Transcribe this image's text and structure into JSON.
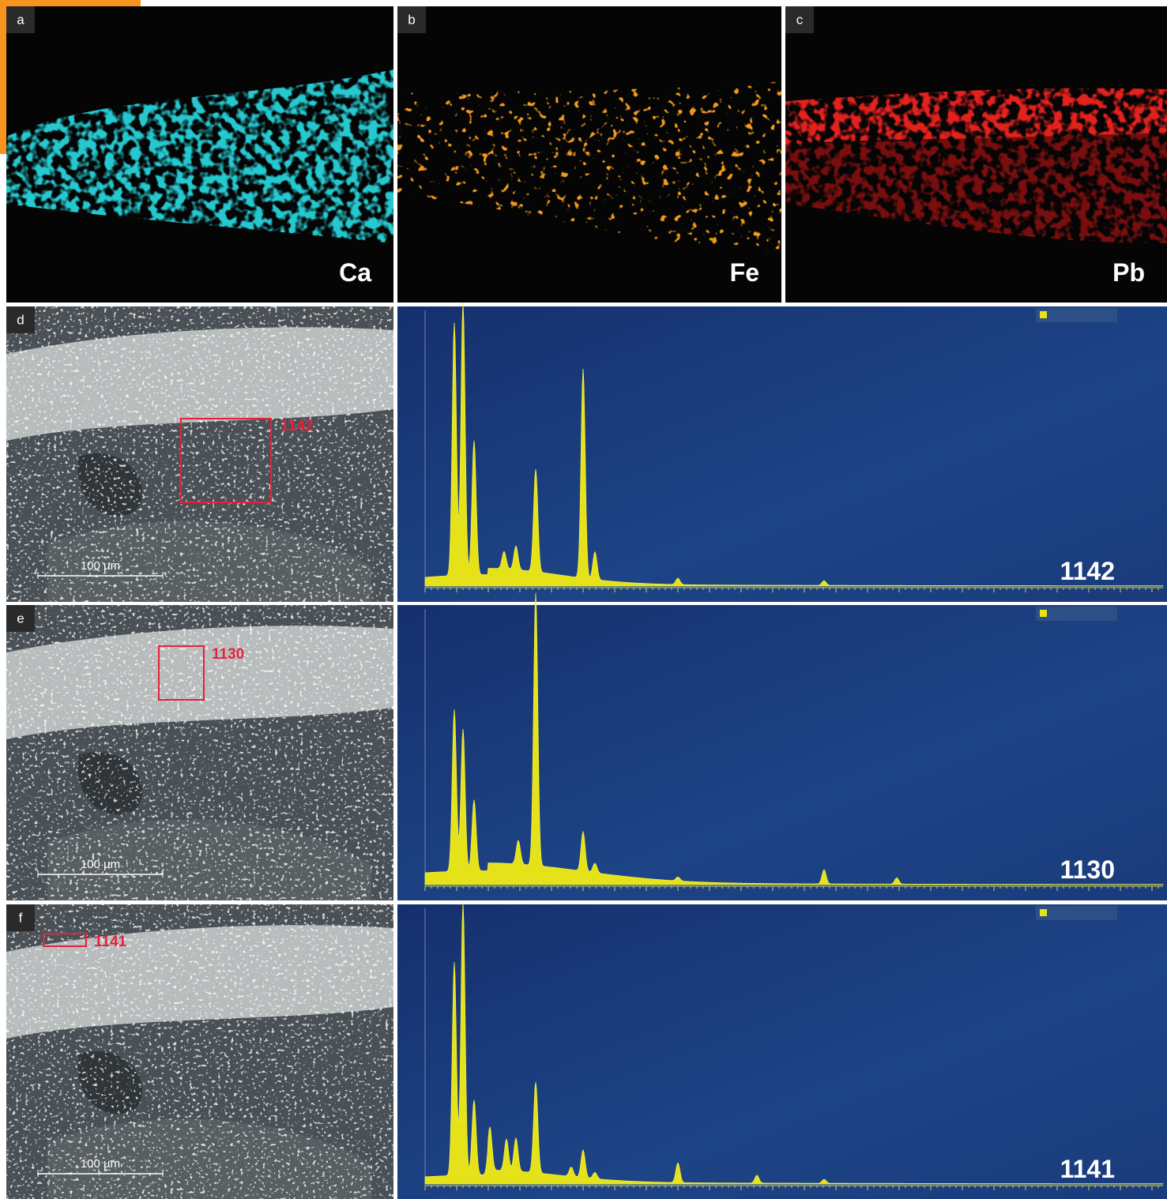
{
  "maps": [
    {
      "letter": "a",
      "element": "Ca"
    },
    {
      "letter": "b",
      "element": "Fe"
    },
    {
      "letter": "c",
      "element": "Pb"
    }
  ],
  "rows": [
    {
      "letter": "d",
      "scale_bar": "100 µm",
      "box_label": "1142",
      "spectrum_label": "1142"
    },
    {
      "letter": "e",
      "scale_bar": "100 µm",
      "box_label": "1130",
      "spectrum_label": "1130"
    },
    {
      "letter": "f",
      "scale_bar": "100 µm",
      "box_label": "1141",
      "spectrum_label": "1141"
    }
  ]
}
